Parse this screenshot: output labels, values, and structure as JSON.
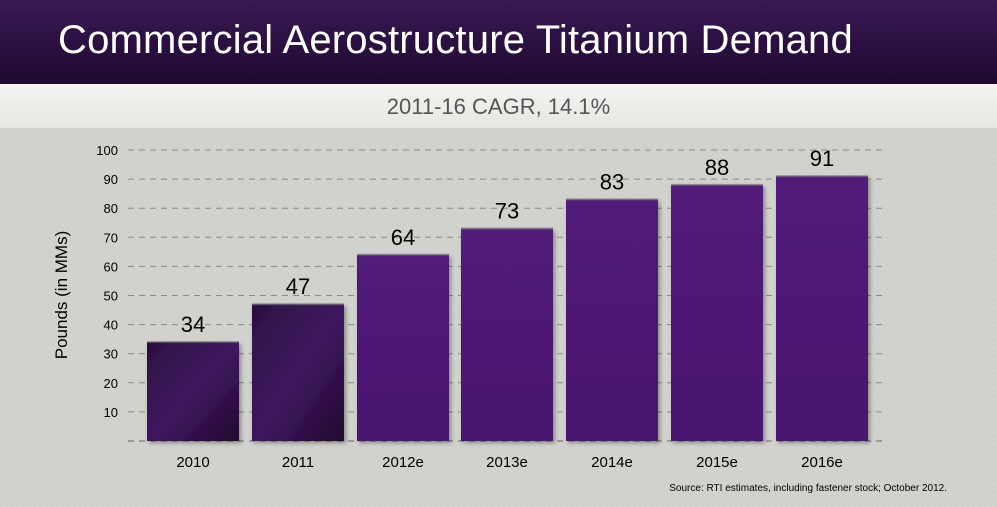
{
  "header": {
    "title": "Commercial Aerostructure Titanium Demand"
  },
  "source_note": "Source: RTI estimates, including fastener stock; October 2012.",
  "colors": {
    "bar_light": "#4e1a72",
    "bar_dark": "#2a0c3f",
    "header_bg": "#2a0f40"
  },
  "chart_data": {
    "type": "bar",
    "title": "Commercial Aerostructure Titanium Demand",
    "subtitle": "2011-16 CAGR, 14.1%",
    "xlabel": "",
    "ylabel": "Pounds (in MMs)",
    "ylim": [
      0,
      100
    ],
    "yticks": [
      10,
      20,
      30,
      40,
      50,
      60,
      70,
      80,
      90,
      100
    ],
    "grid": true,
    "categories": [
      "2010",
      "2011",
      "2012e",
      "2013e",
      "2014e",
      "2015e",
      "2016e"
    ],
    "values": [
      34,
      47,
      64,
      73,
      83,
      88,
      91
    ],
    "data_labels": [
      "34",
      "47",
      "64",
      "73",
      "83",
      "88",
      "91"
    ]
  }
}
